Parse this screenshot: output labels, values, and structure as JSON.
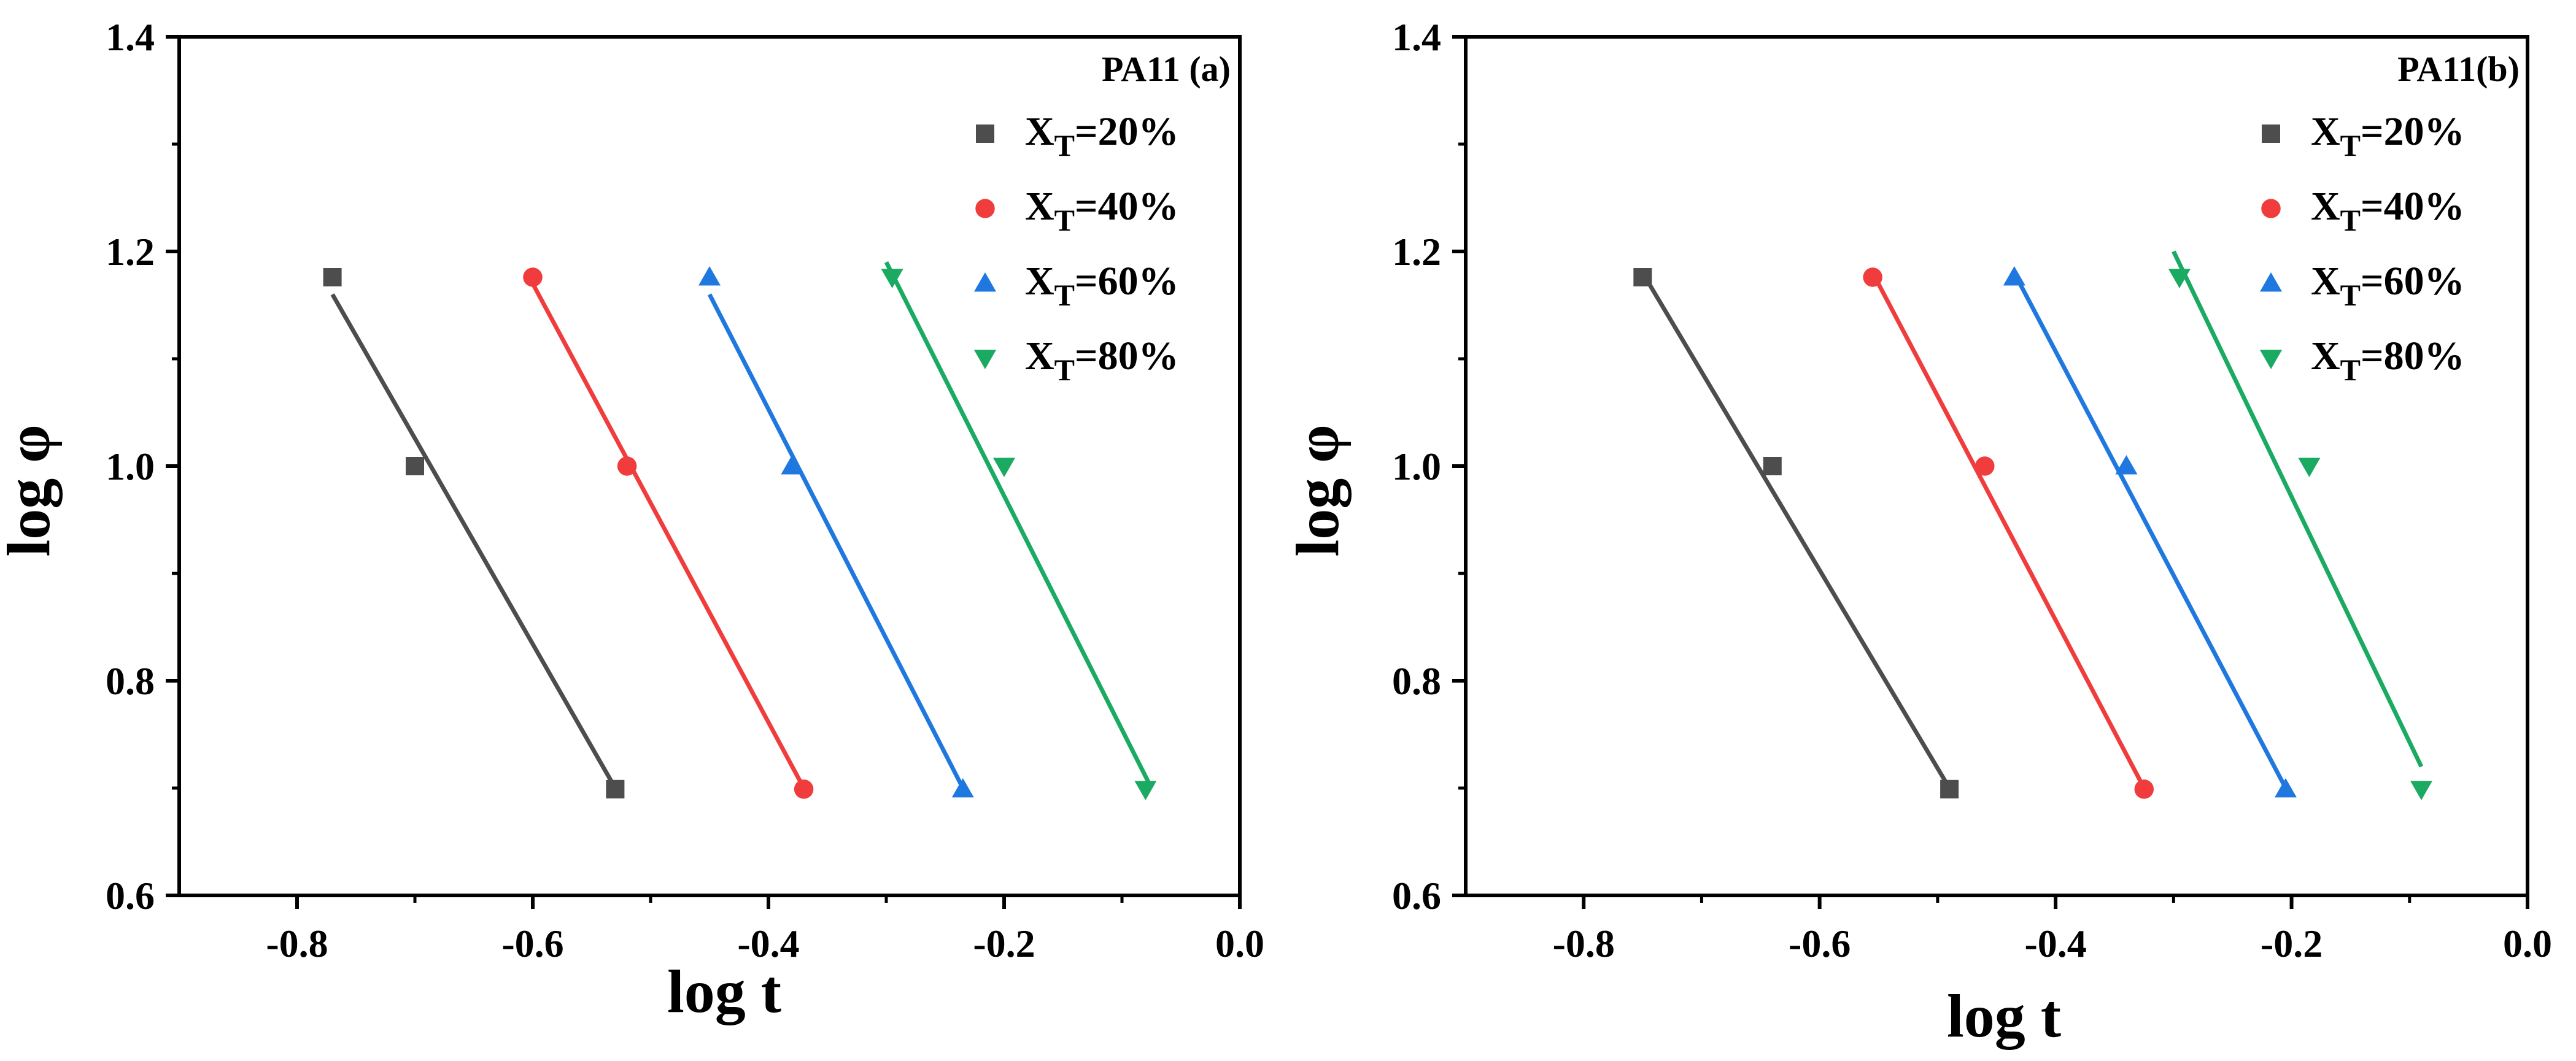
{
  "chart_data": [
    {
      "type": "scatter",
      "panel": "a",
      "title": "PA11 (a)",
      "xlabel": "log t",
      "ylabel": "log φ",
      "xlim": [
        -0.9,
        0.0
      ],
      "ylim": [
        0.6,
        1.4
      ],
      "xticks": [
        -0.8,
        -0.6,
        -0.4,
        -0.2,
        0.0
      ],
      "xtick_labels": [
        "-0.8",
        "-0.6",
        "-0.4",
        "-0.2",
        "0.0"
      ],
      "yticks": [
        0.6,
        0.8,
        1.0,
        1.2,
        1.4
      ],
      "ytick_labels": [
        "0.6",
        "0.8",
        "1.0",
        "1.2",
        "1.4"
      ],
      "legend_position": "top-right",
      "series": [
        {
          "name": "XT=20%",
          "label_main": "X",
          "label_sub": "T",
          "label_rest": "=20%",
          "color": "#4d4d4d",
          "marker": "square",
          "x": [
            -0.77,
            -0.7,
            -0.53
          ],
          "y": [
            1.176,
            1.0,
            0.699
          ],
          "fit": {
            "x": [
              -0.77,
              -0.53
            ],
            "y": [
              1.16,
              0.7
            ]
          }
        },
        {
          "name": "XT=40%",
          "label_main": "X",
          "label_sub": "T",
          "label_rest": "=40%",
          "color": "#f03c3c",
          "marker": "circle",
          "x": [
            -0.6,
            -0.52,
            -0.37
          ],
          "y": [
            1.176,
            1.0,
            0.699
          ],
          "fit": {
            "x": [
              -0.6,
              -0.37
            ],
            "y": [
              1.17,
              0.7
            ]
          }
        },
        {
          "name": "XT=60%",
          "label_main": "X",
          "label_sub": "T",
          "label_rest": "=60%",
          "color": "#1f78e0",
          "marker": "triangle-up",
          "x": [
            -0.45,
            -0.38,
            -0.235
          ],
          "y": [
            1.176,
            1.0,
            0.699
          ],
          "fit": {
            "x": [
              -0.45,
              -0.235
            ],
            "y": [
              1.16,
              0.7
            ]
          }
        },
        {
          "name": "XT=80%",
          "label_main": "X",
          "label_sub": "T",
          "label_rest": "=80%",
          "color": "#1aaa62",
          "marker": "triangle-down",
          "x": [
            -0.295,
            -0.2,
            -0.08
          ],
          "y": [
            1.176,
            1.0,
            0.699
          ],
          "fit": {
            "x": [
              -0.3,
              -0.075
            ],
            "y": [
              1.19,
              0.7
            ]
          }
        }
      ]
    },
    {
      "type": "scatter",
      "panel": "b",
      "title": "PA11(b)",
      "xlabel": "log t",
      "ylabel": "log φ",
      "xlim": [
        -0.9,
        0.0
      ],
      "ylim": [
        0.6,
        1.4
      ],
      "xticks": [
        -0.8,
        -0.6,
        -0.4,
        -0.2,
        0.0
      ],
      "xtick_labels": [
        "-0.8",
        "-0.6",
        "-0.4",
        "-0.2",
        "0.0"
      ],
      "yticks": [
        0.6,
        0.8,
        1.0,
        1.2,
        1.4
      ],
      "ytick_labels": [
        "0.6",
        "0.8",
        "1.0",
        "1.2",
        "1.4"
      ],
      "legend_position": "top-right",
      "series": [
        {
          "name": "XT=20%",
          "label_main": "X",
          "label_sub": "T",
          "label_rest": "=20%",
          "color": "#4d4d4d",
          "marker": "square",
          "x": [
            -0.75,
            -0.64,
            -0.49
          ],
          "y": [
            1.176,
            1.0,
            0.699
          ],
          "fit": {
            "x": [
              -0.75,
              -0.49
            ],
            "y": [
              1.18,
              0.7
            ]
          }
        },
        {
          "name": "XT=40%",
          "label_main": "X",
          "label_sub": "T",
          "label_rest": "=40%",
          "color": "#f03c3c",
          "marker": "circle",
          "x": [
            -0.555,
            -0.46,
            -0.325
          ],
          "y": [
            1.176,
            1.0,
            0.699
          ],
          "fit": {
            "x": [
              -0.555,
              -0.325
            ],
            "y": [
              1.18,
              0.7
            ]
          }
        },
        {
          "name": "XT=60%",
          "label_main": "X",
          "label_sub": "T",
          "label_rest": "=60%",
          "color": "#1f78e0",
          "marker": "triangle-up",
          "x": [
            -0.435,
            -0.34,
            -0.205
          ],
          "y": [
            1.176,
            1.0,
            0.699
          ],
          "fit": {
            "x": [
              -0.435,
              -0.205
            ],
            "y": [
              1.18,
              0.7
            ]
          }
        },
        {
          "name": "XT=80%",
          "label_main": "X",
          "label_sub": "T",
          "label_rest": "=80%",
          "color": "#1aaa62",
          "marker": "triangle-down",
          "x": [
            -0.295,
            -0.185,
            -0.09
          ],
          "y": [
            1.176,
            1.0,
            0.699
          ],
          "fit": {
            "x": [
              -0.3,
              -0.09
            ],
            "y": [
              1.2,
              0.72
            ]
          }
        }
      ]
    }
  ]
}
